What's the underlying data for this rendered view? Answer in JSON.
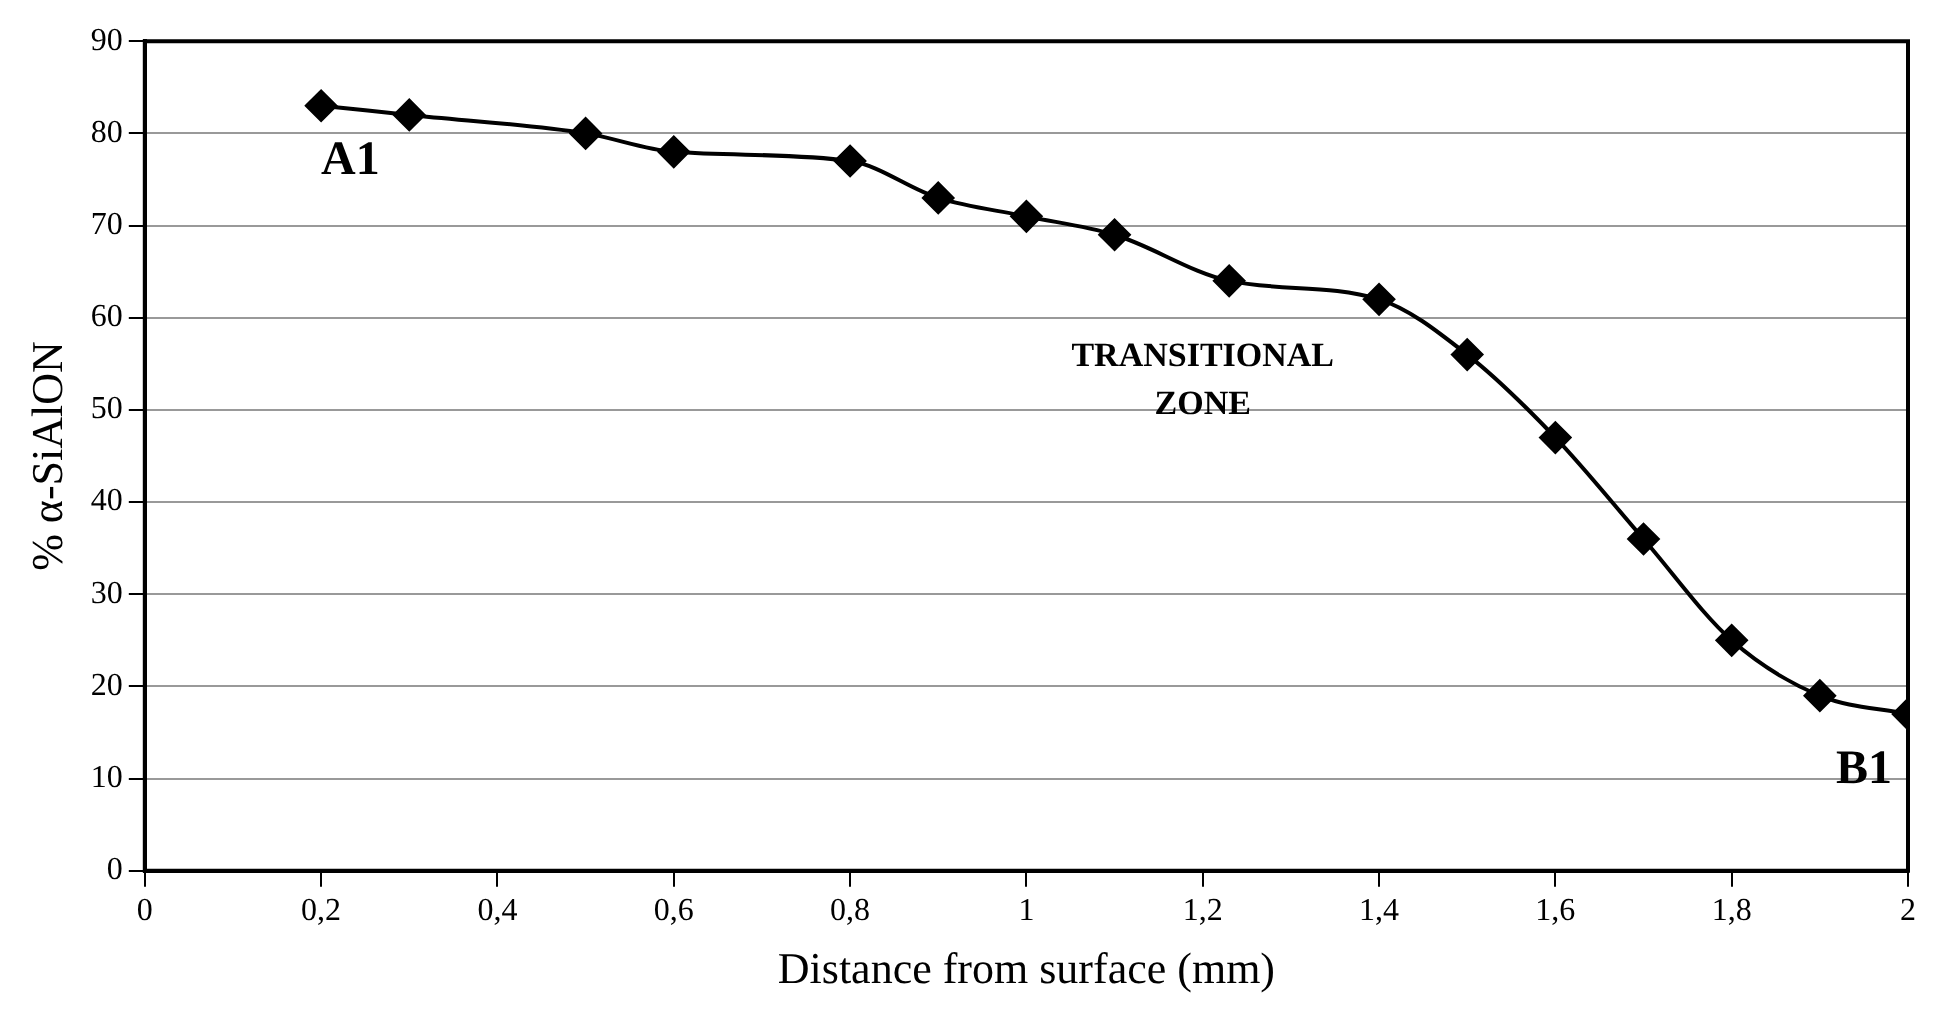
{
  "chart_data": {
    "type": "line",
    "xlabel": "Distance from surface (mm)",
    "ylabel": "% α-SiAlON",
    "x": [
      0.2,
      0.3,
      0.5,
      0.6,
      0.8,
      0.9,
      1.0,
      1.1,
      1.23,
      1.4,
      1.5,
      1.6,
      1.7,
      1.8,
      1.9,
      2.0
    ],
    "series": [
      {
        "color": "#000000",
        "values": [
          83,
          82,
          80,
          78,
          77,
          73,
          71,
          69,
          64,
          62,
          56,
          47,
          36,
          25,
          19,
          17
        ]
      }
    ],
    "xlim": [
      0,
      2
    ],
    "xticks": [
      0,
      {
        "value": 0.2,
        "label": "0,2"
      },
      {
        "value": 0.4,
        "label": "0,4"
      },
      {
        "value": 0.6,
        "label": "0,6"
      },
      {
        "value": 0.8,
        "label": "0,8"
      },
      1,
      {
        "value": 1.2,
        "label": "1,2"
      },
      {
        "value": 1.4,
        "label": "1,4"
      },
      {
        "value": 1.6,
        "label": "1,6"
      },
      {
        "value": 1.8,
        "label": "1,8"
      },
      2
    ],
    "ylim": [
      0,
      90
    ],
    "yticks": [
      0,
      10,
      20,
      30,
      40,
      50,
      60,
      70,
      80,
      90
    ],
    "grid": "y",
    "marker": "diamond",
    "line_style": "solid",
    "legend": false,
    "annotations": [
      {
        "text": "A1",
        "x": 0.2,
        "y": 83
      },
      "TRANSITIONAL\nZONE",
      {
        "text": "B1",
        "x": 2.0,
        "y": 17
      }
    ]
  }
}
